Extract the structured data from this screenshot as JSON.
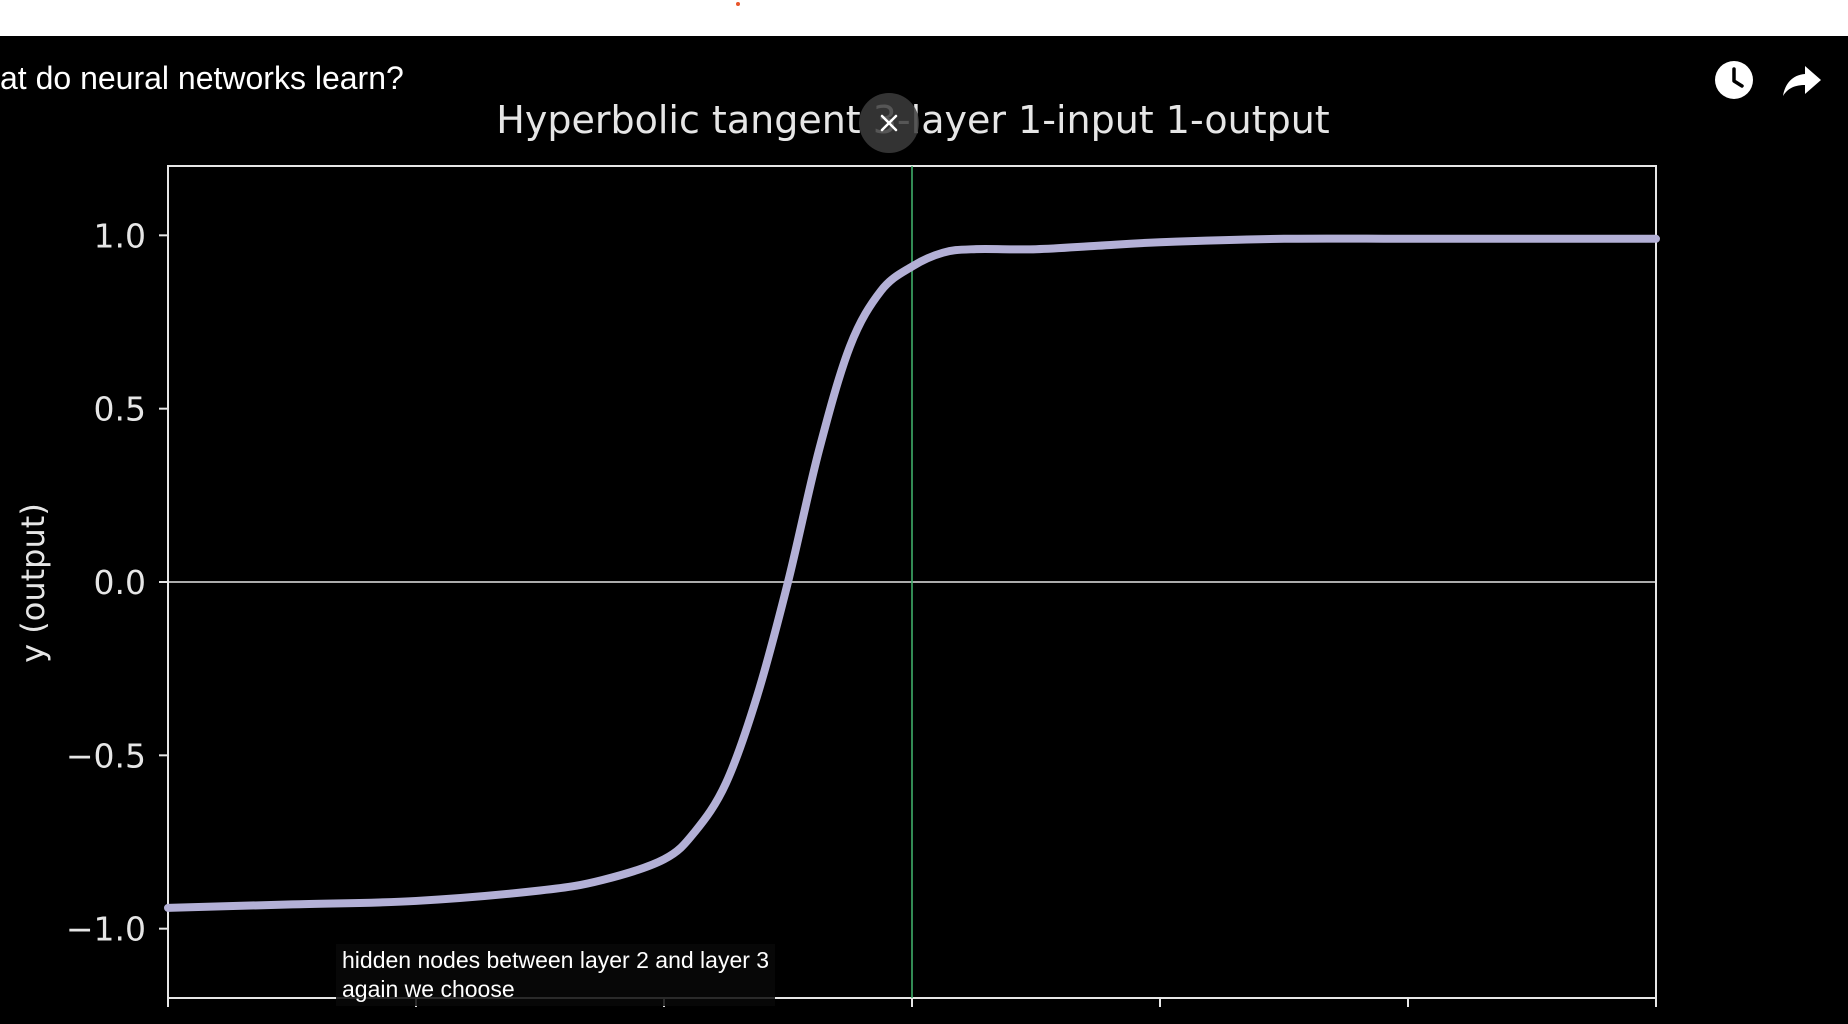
{
  "video": {
    "title": "at do neural networks learn?",
    "watch_later_icon": "clock-icon",
    "share_icon": "share-arrow-icon",
    "close_icon": "close-icon"
  },
  "caption": {
    "line1": "hidden nodes between layer 2 and layer 3",
    "line2": "again we choose"
  },
  "colors": {
    "background": "#000000",
    "curve": "#b3b0d6",
    "vertical_line": "#3fae6a",
    "axis": "#e6e6e6"
  },
  "chart_data": {
    "type": "line",
    "title": "Hyperbolic tangent 3-layer 1-input 1-output",
    "xlabel": "",
    "ylabel": "y (output)",
    "xlim": [
      -6,
      6
    ],
    "ylim": [
      -1.2,
      1.2
    ],
    "yticks": [
      1.0,
      0.5,
      0.0,
      -0.5,
      -1.0
    ],
    "ytick_labels": [
      "1.0",
      "0.5",
      "0.0",
      "−0.5",
      "−1.0"
    ],
    "xticks": [
      -6,
      -4,
      -2,
      0,
      2,
      4,
      6
    ],
    "hlines": [
      0
    ],
    "vlines": [
      0
    ],
    "grid": false,
    "series": [
      {
        "x": [
          -6.0,
          -5.0,
          -4.0,
          -3.0,
          -2.5,
          -2.0,
          -1.75,
          -1.5,
          -1.25,
          -1.0,
          -0.75,
          -0.5,
          -0.25,
          0.0,
          0.25,
          0.5,
          1.0,
          1.5,
          2.0,
          3.0,
          4.0,
          5.0,
          6.0
        ],
        "y": [
          -0.94,
          -0.93,
          -0.92,
          -0.89,
          -0.86,
          -0.8,
          -0.72,
          -0.58,
          -0.33,
          0.0,
          0.38,
          0.68,
          0.84,
          0.91,
          0.95,
          0.96,
          0.96,
          0.97,
          0.98,
          0.99,
          0.99,
          0.99,
          0.99
        ]
      }
    ]
  }
}
